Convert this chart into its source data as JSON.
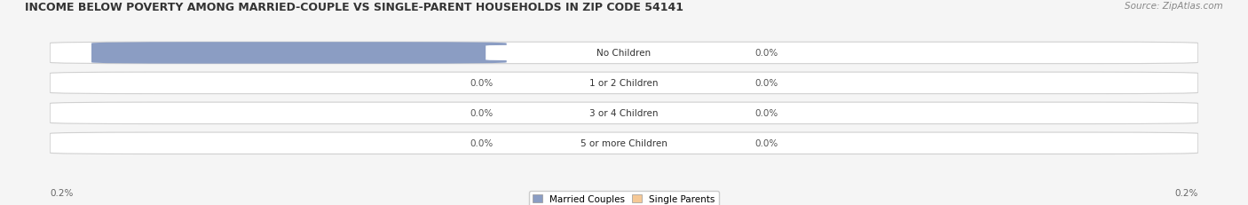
{
  "title": "INCOME BELOW POVERTY AMONG MARRIED-COUPLE VS SINGLE-PARENT HOUSEHOLDS IN ZIP CODE 54141",
  "source": "Source: ZipAtlas.com",
  "categories": [
    "No Children",
    "1 or 2 Children",
    "3 or 4 Children",
    "5 or more Children"
  ],
  "married_values": [
    0.2,
    0.0,
    0.0,
    0.0
  ],
  "single_values": [
    0.0,
    0.0,
    0.0,
    0.0
  ],
  "married_color": "#8B9DC3",
  "single_color": "#F5C896",
  "married_label": "Married Couples",
  "single_label": "Single Parents",
  "xlim": 0.22,
  "background_color": "#f5f5f5",
  "row_bg_color": "#ebebeb",
  "title_fontsize": 9.0,
  "source_fontsize": 7.5,
  "label_fontsize": 7.5,
  "category_fontsize": 7.5,
  "axis_label_fontsize": 7.5,
  "bar_value_inside_color": "#ffffff",
  "bar_value_outside_color": "#555555"
}
